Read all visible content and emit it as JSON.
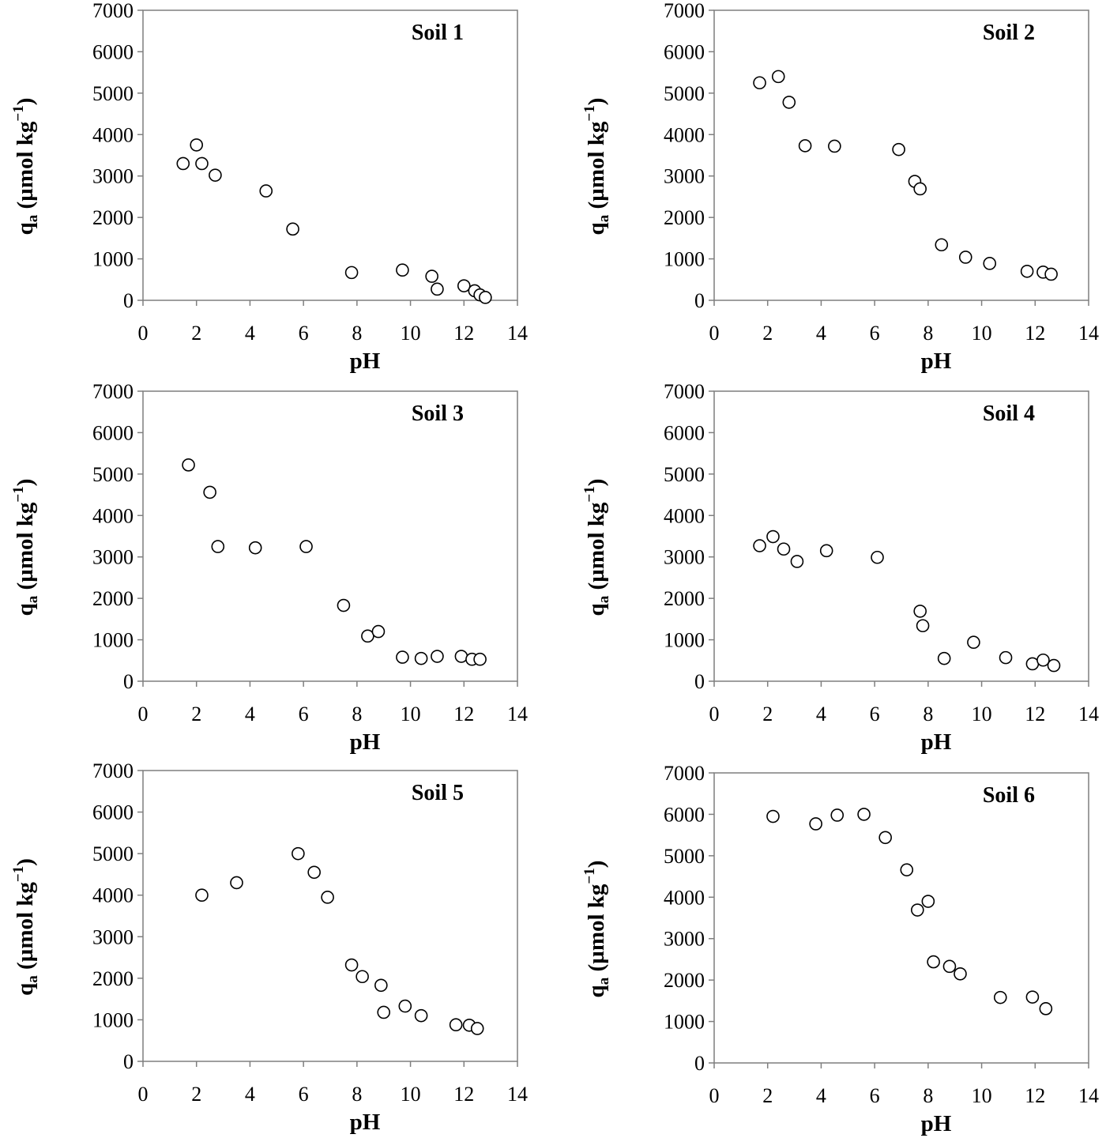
{
  "chart_data": [
    {
      "type": "scatter",
      "title": "Soil 1",
      "xlabel": "pH",
      "ylabel": "q",
      "ylabel_sub": "a",
      "ylabel_unit": " (µmol kg",
      "ylabel_sup": "−1",
      "ylabel_close": ")",
      "xlim": [
        0,
        14
      ],
      "ylim": [
        0,
        7000
      ],
      "xticks": [
        "0",
        "2",
        "4",
        "6",
        "8",
        "10",
        "12",
        "14"
      ],
      "yticks": [
        "0",
        "1000",
        "2000",
        "3000",
        "4000",
        "5000",
        "6000",
        "7000"
      ],
      "grid": false,
      "marker": "open-circle",
      "points": [
        {
          "x": 1.5,
          "y": 3300
        },
        {
          "x": 2.0,
          "y": 3750
        },
        {
          "x": 2.2,
          "y": 3300
        },
        {
          "x": 2.7,
          "y": 3020
        },
        {
          "x": 4.6,
          "y": 2640
        },
        {
          "x": 5.6,
          "y": 1720
        },
        {
          "x": 7.8,
          "y": 670
        },
        {
          "x": 9.7,
          "y": 730
        },
        {
          "x": 10.8,
          "y": 580
        },
        {
          "x": 11.0,
          "y": 270
        },
        {
          "x": 12.0,
          "y": 350
        },
        {
          "x": 12.4,
          "y": 230
        },
        {
          "x": 12.6,
          "y": 130
        },
        {
          "x": 12.8,
          "y": 70
        }
      ]
    },
    {
      "type": "scatter",
      "title": "Soil 2",
      "xlabel": "pH",
      "ylabel": "q",
      "ylabel_sub": "a",
      "ylabel_unit": " (µmol kg",
      "ylabel_sup": "−1",
      "ylabel_close": ")",
      "xlim": [
        0,
        14
      ],
      "ylim": [
        0,
        7000
      ],
      "xticks": [
        "0",
        "2",
        "4",
        "6",
        "8",
        "10",
        "12",
        "14"
      ],
      "yticks": [
        "0",
        "1000",
        "2000",
        "3000",
        "4000",
        "5000",
        "6000",
        "7000"
      ],
      "grid": false,
      "marker": "open-circle",
      "points": [
        {
          "x": 1.7,
          "y": 5250
        },
        {
          "x": 2.4,
          "y": 5400
        },
        {
          "x": 2.8,
          "y": 4780
        },
        {
          "x": 3.4,
          "y": 3730
        },
        {
          "x": 4.5,
          "y": 3720
        },
        {
          "x": 6.9,
          "y": 3640
        },
        {
          "x": 7.5,
          "y": 2870
        },
        {
          "x": 7.7,
          "y": 2690
        },
        {
          "x": 8.5,
          "y": 1340
        },
        {
          "x": 9.4,
          "y": 1040
        },
        {
          "x": 10.3,
          "y": 890
        },
        {
          "x": 11.7,
          "y": 700
        },
        {
          "x": 12.3,
          "y": 680
        },
        {
          "x": 12.6,
          "y": 630
        }
      ]
    },
    {
      "type": "scatter",
      "title": "Soil 3",
      "xlabel": "pH",
      "ylabel": "q",
      "ylabel_sub": "a",
      "ylabel_unit": " (µmol kg",
      "ylabel_sup": "−1",
      "ylabel_close": ")",
      "xlim": [
        0,
        14
      ],
      "ylim": [
        0,
        7000
      ],
      "xticks": [
        "0",
        "2",
        "4",
        "6",
        "8",
        "10",
        "12",
        "14"
      ],
      "yticks": [
        "0",
        "1000",
        "2000",
        "3000",
        "4000",
        "5000",
        "6000",
        "7000"
      ],
      "grid": false,
      "marker": "open-circle",
      "points": [
        {
          "x": 1.7,
          "y": 5220
        },
        {
          "x": 2.5,
          "y": 4560
        },
        {
          "x": 2.8,
          "y": 3250
        },
        {
          "x": 4.2,
          "y": 3220
        },
        {
          "x": 6.1,
          "y": 3250
        },
        {
          "x": 7.5,
          "y": 1830
        },
        {
          "x": 8.4,
          "y": 1090
        },
        {
          "x": 8.8,
          "y": 1200
        },
        {
          "x": 9.7,
          "y": 580
        },
        {
          "x": 10.4,
          "y": 550
        },
        {
          "x": 11.0,
          "y": 600
        },
        {
          "x": 11.9,
          "y": 600
        },
        {
          "x": 12.3,
          "y": 530
        },
        {
          "x": 12.6,
          "y": 530
        }
      ]
    },
    {
      "type": "scatter",
      "title": "Soil 4",
      "xlabel": "pH",
      "ylabel": "q",
      "ylabel_sub": "a",
      "ylabel_unit": " (µmol kg",
      "ylabel_sup": "−1",
      "ylabel_close": ")",
      "xlim": [
        0,
        14
      ],
      "ylim": [
        0,
        7000
      ],
      "xticks": [
        "0",
        "2",
        "4",
        "6",
        "8",
        "10",
        "12",
        "14"
      ],
      "yticks": [
        "0",
        "1000",
        "2000",
        "3000",
        "4000",
        "5000",
        "6000",
        "7000"
      ],
      "grid": false,
      "marker": "open-circle",
      "points": [
        {
          "x": 1.7,
          "y": 3270
        },
        {
          "x": 2.2,
          "y": 3490
        },
        {
          "x": 2.6,
          "y": 3190
        },
        {
          "x": 3.1,
          "y": 2890
        },
        {
          "x": 4.2,
          "y": 3150
        },
        {
          "x": 6.1,
          "y": 2990
        },
        {
          "x": 7.7,
          "y": 1690
        },
        {
          "x": 7.8,
          "y": 1340
        },
        {
          "x": 8.6,
          "y": 550
        },
        {
          "x": 9.7,
          "y": 940
        },
        {
          "x": 10.9,
          "y": 570
        },
        {
          "x": 11.9,
          "y": 420
        },
        {
          "x": 12.3,
          "y": 510
        },
        {
          "x": 12.7,
          "y": 380
        }
      ]
    },
    {
      "type": "scatter",
      "title": "Soil 5",
      "xlabel": "pH",
      "ylabel": "q",
      "ylabel_sub": "a",
      "ylabel_unit": " (µmol kg",
      "ylabel_sup": "−1",
      "ylabel_close": ")",
      "xlim": [
        0,
        14
      ],
      "ylim": [
        0,
        7000
      ],
      "xticks": [
        "0",
        "2",
        "4",
        "6",
        "8",
        "10",
        "12",
        "14"
      ],
      "yticks": [
        "0",
        "1000",
        "2000",
        "3000",
        "4000",
        "5000",
        "6000",
        "7000"
      ],
      "grid": false,
      "marker": "open-circle",
      "points": [
        {
          "x": 2.2,
          "y": 4000
        },
        {
          "x": 3.5,
          "y": 4300
        },
        {
          "x": 5.8,
          "y": 5000
        },
        {
          "x": 6.4,
          "y": 4550
        },
        {
          "x": 6.9,
          "y": 3950
        },
        {
          "x": 7.8,
          "y": 2320
        },
        {
          "x": 8.2,
          "y": 2040
        },
        {
          "x": 8.9,
          "y": 1830
        },
        {
          "x": 9.0,
          "y": 1180
        },
        {
          "x": 9.8,
          "y": 1330
        },
        {
          "x": 10.4,
          "y": 1100
        },
        {
          "x": 11.7,
          "y": 880
        },
        {
          "x": 12.2,
          "y": 870
        },
        {
          "x": 12.5,
          "y": 790
        }
      ]
    },
    {
      "type": "scatter",
      "title": "Soil 6",
      "xlabel": "pH",
      "ylabel": "q",
      "ylabel_sub": "a",
      "ylabel_unit": " (µmol kg",
      "ylabel_sup": "−1",
      "ylabel_close": ")",
      "xlim": [
        0,
        14
      ],
      "ylim": [
        0,
        7000
      ],
      "xticks": [
        "0",
        "2",
        "4",
        "6",
        "8",
        "10",
        "12",
        "14"
      ],
      "yticks": [
        "0",
        "1000",
        "2000",
        "3000",
        "4000",
        "5000",
        "6000",
        "7000"
      ],
      "grid": false,
      "marker": "open-circle",
      "points": [
        {
          "x": 2.2,
          "y": 5950
        },
        {
          "x": 3.8,
          "y": 5770
        },
        {
          "x": 4.6,
          "y": 5980
        },
        {
          "x": 5.6,
          "y": 6000
        },
        {
          "x": 6.4,
          "y": 5440
        },
        {
          "x": 7.2,
          "y": 4660
        },
        {
          "x": 7.6,
          "y": 3690
        },
        {
          "x": 8.0,
          "y": 3900
        },
        {
          "x": 8.2,
          "y": 2440
        },
        {
          "x": 8.8,
          "y": 2330
        },
        {
          "x": 9.2,
          "y": 2150
        },
        {
          "x": 10.7,
          "y": 1580
        },
        {
          "x": 11.9,
          "y": 1590
        },
        {
          "x": 12.4,
          "y": 1310
        }
      ]
    }
  ]
}
